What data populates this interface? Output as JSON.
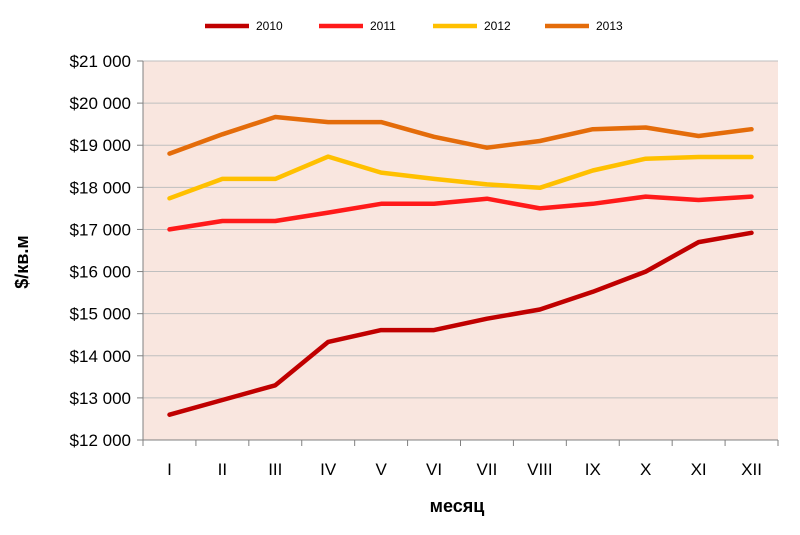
{
  "chart_data": {
    "type": "line",
    "title": "",
    "xlabel": "месяц",
    "ylabel": "$/кв.м",
    "categories": [
      "I",
      "II",
      "III",
      "IV",
      "V",
      "VI",
      "VII",
      "VIII",
      "IX",
      "X",
      "XI",
      "XII"
    ],
    "ylim": [
      12000,
      21000
    ],
    "yticks": [
      12000,
      13000,
      14000,
      15000,
      16000,
      17000,
      18000,
      19000,
      20000,
      21000
    ],
    "ytick_labels": [
      "$12 000",
      "$13 000",
      "$14 000",
      "$15 000",
      "$16 000",
      "$17 000",
      "$18 000",
      "$19 000",
      "$20 000",
      "$21 000"
    ],
    "grid": "horizontal",
    "legend_position": "top",
    "plot_background": "#f9e6df",
    "grid_color": "#bfbfbf",
    "series": [
      {
        "name": "2010",
        "color": "#c00000",
        "values": [
          12600,
          12950,
          13300,
          14330,
          14610,
          14610,
          14880,
          15100,
          15520,
          16000,
          16700,
          16920
        ]
      },
      {
        "name": "2011",
        "color": "#ff1a1a",
        "values": [
          17000,
          17200,
          17200,
          17400,
          17610,
          17610,
          17730,
          17500,
          17610,
          17780,
          17700,
          17780
        ]
      },
      {
        "name": "2012",
        "color": "#ffc000",
        "values": [
          17740,
          18200,
          18200,
          18730,
          18350,
          18200,
          18070,
          17990,
          18400,
          18680,
          18720,
          18720
        ]
      },
      {
        "name": "2013",
        "color": "#e46c0a",
        "values": [
          18800,
          19260,
          19670,
          19550,
          19550,
          19200,
          18940,
          19100,
          19380,
          19420,
          19220,
          19380
        ]
      }
    ]
  }
}
